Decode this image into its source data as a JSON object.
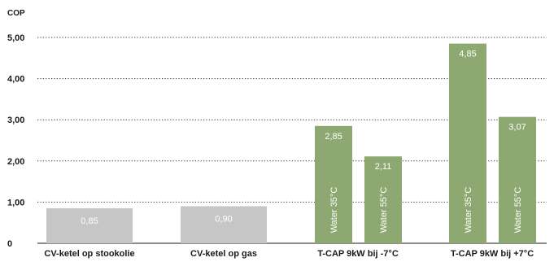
{
  "chart_data": {
    "type": "bar",
    "ylabel": "COP",
    "ylim": [
      0,
      5
    ],
    "yticks": [
      "0",
      "1,00",
      "2,00",
      "3,00",
      "4,00",
      "5,00"
    ],
    "grid": true,
    "categories": [
      "CV-ketel op stookolie",
      "CV-ketel op gas",
      "T-CAP 9kW bij -7°C",
      "T-CAP 9kW bij +7°C"
    ],
    "bars": [
      {
        "category": 0,
        "value": 0.85,
        "label": "0,85",
        "inner_label": "",
        "color": "#c6c6c6"
      },
      {
        "category": 1,
        "value": 0.9,
        "label": "0,90",
        "inner_label": "",
        "color": "#c6c6c6"
      },
      {
        "category": 2,
        "value": 2.85,
        "label": "2,85",
        "inner_label": "Water 35°C",
        "color": "#8da870"
      },
      {
        "category": 2,
        "value": 2.11,
        "label": "2,11",
        "inner_label": "Water 55°C",
        "color": "#8da870"
      },
      {
        "category": 3,
        "value": 4.85,
        "label": "4,85",
        "inner_label": "Water 35°C",
        "color": "#8da870"
      },
      {
        "category": 3,
        "value": 3.07,
        "label": "3,07",
        "inner_label": "Water 55°C",
        "color": "#8da870"
      }
    ]
  }
}
